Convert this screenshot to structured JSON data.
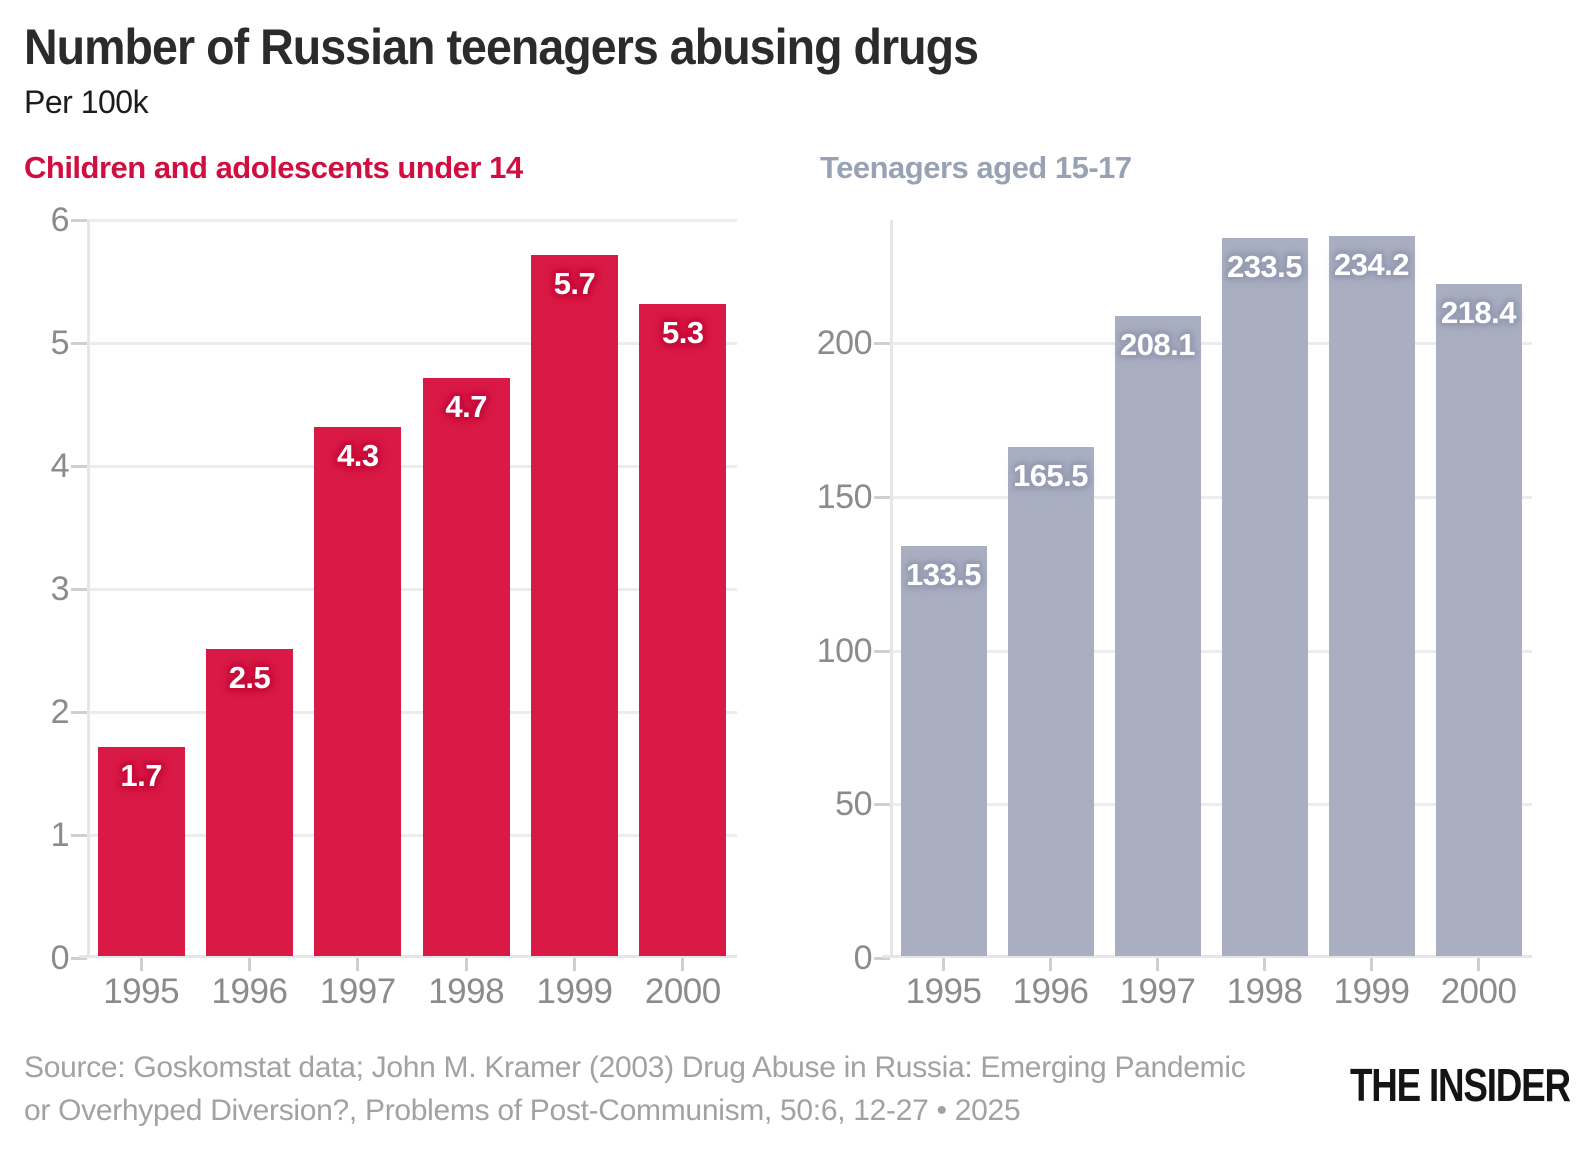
{
  "header": {
    "title": "Number of Russian teenagers abusing drugs",
    "subtitle": "Per 100k"
  },
  "chart_data": [
    {
      "type": "bar",
      "title": "Children and adolescents under 14",
      "categories": [
        "1995",
        "1996",
        "1997",
        "1998",
        "1999",
        "2000"
      ],
      "values": [
        1.7,
        2.5,
        4.3,
        4.7,
        5.7,
        5.3
      ],
      "ylim": [
        0,
        6
      ],
      "yticks": [
        0,
        1,
        2,
        3,
        4,
        5,
        6
      ],
      "grid": true,
      "legend": "none",
      "value_labels": "inside-top",
      "colors": {
        "bar": "#d91a46",
        "label_halo": "#c60f3d",
        "title": "#d00e3f"
      }
    },
    {
      "type": "bar",
      "title": "Teenagers aged 15-17",
      "categories": [
        "1995",
        "1996",
        "1997",
        "1998",
        "1999",
        "2000"
      ],
      "values": [
        133.5,
        165.5,
        208.1,
        233.5,
        234.2,
        218.4
      ],
      "ylim": [
        0,
        240
      ],
      "yticks": [
        0,
        50,
        100,
        150,
        200
      ],
      "grid": true,
      "legend": "none",
      "value_labels": "inside-top",
      "colors": {
        "bar": "#a9aec1",
        "label_halo": "#979db3",
        "title": "#98a2b5"
      }
    }
  ],
  "axis_style": {
    "tick_label_color": "#8b8b8e",
    "gridline_color": "#ececef",
    "axis_line_color": "#e6e6e9",
    "tick_mark_color": "#cfcfd3"
  },
  "footer": {
    "source_line1": "Source: Goskomstat data; John M. Kramer (2003) Drug Abuse in Russia: Emerging Pandemic",
    "source_line2": "or Overhyped Diversion?, Problems of Post-Communism, 50:6, 12-27 • 2025",
    "source_color": "#a2a2a6",
    "logo_text": "THE INSIDER",
    "logo_color": "#141414"
  }
}
